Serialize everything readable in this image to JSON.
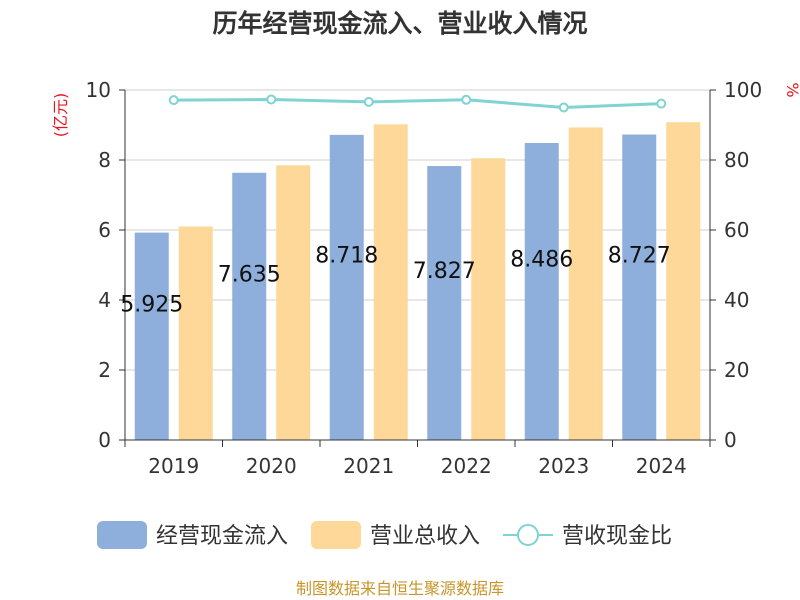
{
  "title": "历年经营现金流入、营业收入情况",
  "source": "制图数据来自恒生聚源数据库",
  "left_axis_unit": "(亿元)",
  "right_axis_unit": "%",
  "chart_data": {
    "type": "bar",
    "categories": [
      "2019",
      "2020",
      "2021",
      "2022",
      "2023",
      "2024"
    ],
    "series": [
      {
        "name": "经营现金流入",
        "type": "bar",
        "axis": "left",
        "color": "#8eaedb",
        "values": [
          5.925,
          7.635,
          8.718,
          7.827,
          8.486,
          8.727
        ],
        "labels": [
          "5.925",
          "7.635",
          "8.718",
          "7.827",
          "8.486",
          "8.727"
        ]
      },
      {
        "name": "营业总收入",
        "type": "bar",
        "axis": "left",
        "color": "#fed899",
        "values": [
          6.1,
          7.85,
          9.02,
          8.05,
          8.93,
          9.08
        ]
      },
      {
        "name": "营收现金比",
        "type": "line",
        "axis": "right",
        "color": "#7fd3d3",
        "values": [
          97.1,
          97.3,
          96.6,
          97.2,
          95.0,
          96.1
        ]
      }
    ],
    "y_left": {
      "min": 0,
      "max": 10,
      "ticks": [
        "0",
        "2",
        "4",
        "6",
        "8",
        "10"
      ]
    },
    "y_right": {
      "min": 0,
      "max": 100,
      "ticks": [
        "0",
        "20",
        "40",
        "60",
        "80",
        "100"
      ]
    },
    "grid": true,
    "legend_position": "bottom"
  }
}
